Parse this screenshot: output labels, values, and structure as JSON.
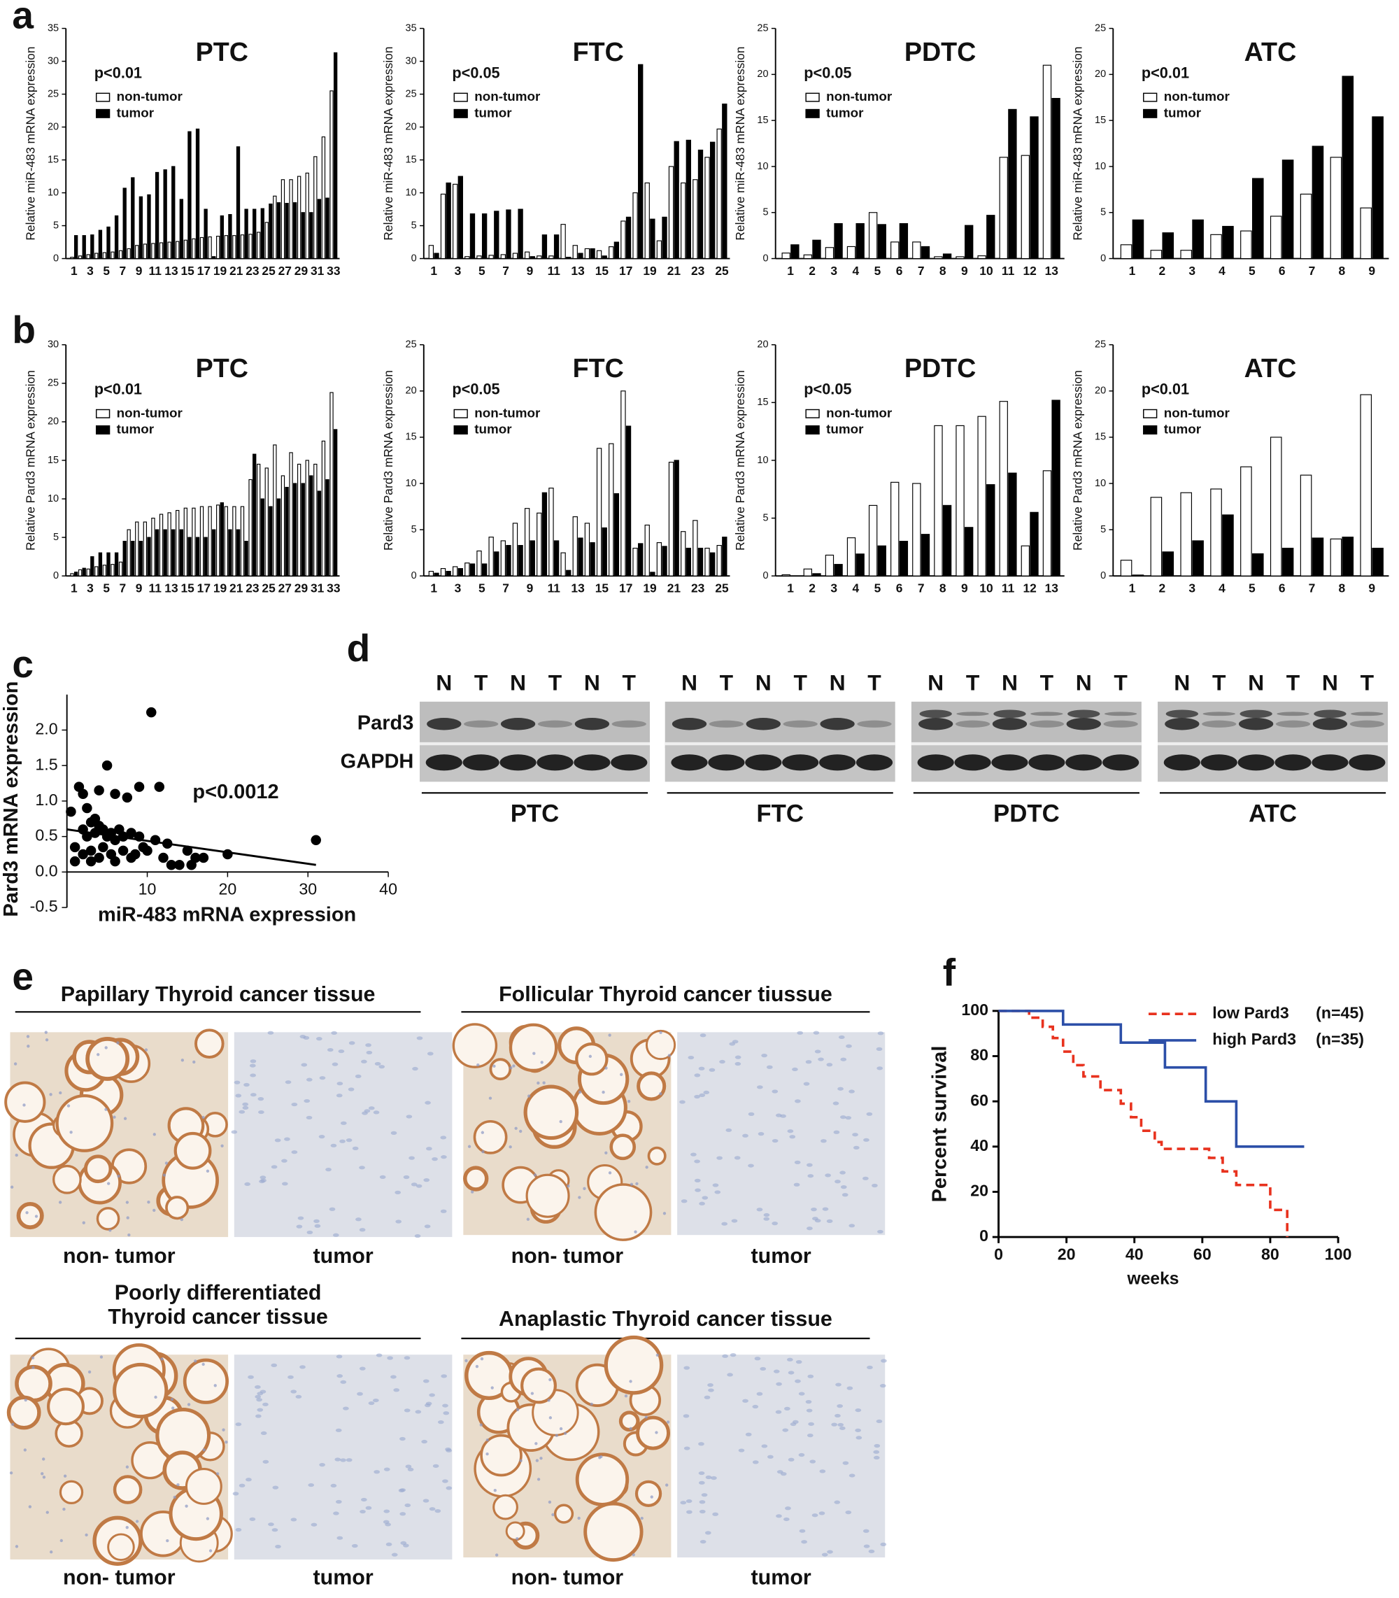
{
  "panel_labels": [
    "a",
    "b",
    "c",
    "d",
    "e",
    "f"
  ],
  "chart_data": [
    {
      "type": "bar",
      "title": "PTC",
      "annotation": "p<0.01",
      "y_label": "Relative miR-483 mRNA expression",
      "categories": [
        "1",
        null,
        "3",
        null,
        "5",
        null,
        "7",
        null,
        "9",
        null,
        "11",
        null,
        "13",
        null,
        "15",
        null,
        "17",
        null,
        "19",
        null,
        "21",
        null,
        "23",
        null,
        "25",
        null,
        "27",
        null,
        "29",
        null,
        "31",
        null,
        "33"
      ],
      "series": [
        {
          "name": "non-tumor",
          "color": "#ffffff",
          "values": [
            0.2,
            0.4,
            0.6,
            0.8,
            0.9,
            1,
            1.2,
            1.5,
            2,
            2.2,
            2.3,
            2.4,
            2.5,
            2.6,
            2.8,
            3,
            3.2,
            3.3,
            3.4,
            3.5,
            3.5,
            3.6,
            3.7,
            4,
            5.5,
            9.5,
            12,
            12,
            12.5,
            13,
            15.5,
            18.5,
            25.5
          ]
        },
        {
          "name": "tumor",
          "color": "#000000",
          "values": [
            3.5,
            3.5,
            3.6,
            4.3,
            4.8,
            6.5,
            10.7,
            12.3,
            9.4,
            9.7,
            13.1,
            13.5,
            14,
            9,
            19.3,
            19.7,
            7.5,
            0.3,
            6.5,
            6.7,
            17,
            7.5,
            7.5,
            7.6,
            8.3,
            8.5,
            8.4,
            8.5,
            7,
            7,
            9,
            9.2,
            31.3
          ]
        }
      ],
      "ylim": [
        0,
        35
      ],
      "yticks": [
        0,
        5,
        10,
        15,
        20,
        25,
        30,
        35
      ]
    },
    {
      "type": "bar",
      "title": "FTC",
      "annotation": "p<0.05",
      "y_label": "Relative miR-483 mRNA expression",
      "categories": [
        "1",
        null,
        "3",
        null,
        "5",
        null,
        "7",
        null,
        "9",
        null,
        "11",
        null,
        "13",
        null,
        "15",
        null,
        "17",
        null,
        "19",
        null,
        "21",
        null,
        "23",
        null,
        "25"
      ],
      "series": [
        {
          "name": "non-tumor",
          "color": "#ffffff",
          "values": [
            2,
            9.8,
            11.3,
            0.3,
            0.4,
            0.5,
            0.6,
            0.8,
            1,
            0.4,
            0.4,
            5.2,
            2,
            1.5,
            1.2,
            1.8,
            5.7,
            10,
            11.5,
            2.7,
            14,
            11.5,
            12,
            15.4,
            19.7
          ]
        },
        {
          "name": "tumor",
          "color": "#000000",
          "values": [
            0.8,
            11.5,
            12.5,
            6.8,
            6.8,
            7.2,
            7.4,
            7.5,
            0.3,
            3.6,
            3.6,
            0.2,
            0.8,
            1.5,
            0.4,
            2.5,
            6.3,
            29.5,
            6,
            6.3,
            17.8,
            18,
            16.5,
            17.7,
            23.5
          ]
        }
      ],
      "ylim": [
        0,
        35
      ],
      "yticks": [
        0,
        5,
        10,
        15,
        20,
        25,
        30,
        35
      ]
    },
    {
      "type": "bar",
      "title": "PDTC",
      "annotation": "p<0.05",
      "y_label": "Relative miR-483 mRNA expression",
      "categories": [
        "1",
        "2",
        "3",
        "4",
        "5",
        "6",
        "7",
        "8",
        "9",
        "10",
        "11",
        "12",
        "13"
      ],
      "series": [
        {
          "name": "non-tumor",
          "color": "#ffffff",
          "values": [
            0.6,
            0.4,
            1.2,
            1.3,
            5,
            1.8,
            1.8,
            0.2,
            0.2,
            0.3,
            11,
            11.2,
            21
          ]
        },
        {
          "name": "tumor",
          "color": "#000000",
          "values": [
            1.5,
            2,
            3.8,
            3.8,
            3.7,
            3.8,
            1.3,
            0.5,
            3.6,
            4.7,
            16.2,
            15.4,
            17.4
          ]
        }
      ],
      "ylim": [
        0,
        25
      ],
      "yticks": [
        0,
        5,
        10,
        15,
        20,
        25
      ]
    },
    {
      "type": "bar",
      "title": "ATC",
      "annotation": "p<0.01",
      "y_label": "Relative miR-483 mRNA expression",
      "categories": [
        "1",
        "2",
        "3",
        "4",
        "5",
        "6",
        "7",
        "8",
        "9"
      ],
      "series": [
        {
          "name": "non-tumor",
          "color": "#ffffff",
          "values": [
            1.5,
            0.9,
            0.9,
            2.6,
            3,
            4.6,
            7,
            11,
            5.5
          ]
        },
        {
          "name": "tumor",
          "color": "#000000",
          "values": [
            4.2,
            2.8,
            4.2,
            3.5,
            8.7,
            10.7,
            12.2,
            19.8,
            15.4
          ]
        }
      ],
      "ylim": [
        0,
        25
      ],
      "yticks": [
        0,
        5,
        10,
        15,
        20,
        25
      ]
    },
    {
      "type": "bar",
      "title": "PTC",
      "annotation": "p<0.01",
      "y_label": "Relative Pard3 mRNA expression",
      "categories": [
        "1",
        null,
        "3",
        null,
        "5",
        null,
        "7",
        null,
        "9",
        null,
        "11",
        null,
        "13",
        null,
        "15",
        null,
        "17",
        null,
        "19",
        null,
        "21",
        null,
        "23",
        null,
        "25",
        null,
        "27",
        null,
        "29",
        null,
        "31",
        null,
        "33"
      ],
      "series": [
        {
          "name": "non-tumor",
          "color": "#ffffff",
          "values": [
            0.3,
            0.8,
            0.9,
            1.2,
            1.4,
            1.5,
            1.8,
            6,
            7,
            7,
            7.5,
            8,
            8.2,
            8.5,
            8.8,
            8.8,
            9,
            9,
            9.2,
            9,
            9,
            9,
            12.5,
            14.5,
            14,
            17,
            13,
            16,
            14.5,
            15,
            14.5,
            17.5,
            23.8
          ]
        },
        {
          "name": "tumor",
          "color": "#000000",
          "values": [
            0.5,
            1,
            2.5,
            3,
            3,
            3,
            4.5,
            4.5,
            4.5,
            5,
            6,
            6,
            6,
            6,
            5,
            5,
            5,
            6,
            9.5,
            6,
            6,
            4.5,
            15.8,
            10,
            9,
            10,
            11.5,
            12,
            12,
            13,
            11,
            12.5,
            19
          ]
        }
      ],
      "ylim": [
        0,
        30
      ],
      "yticks": [
        0,
        5,
        10,
        15,
        20,
        25,
        30
      ]
    },
    {
      "type": "bar",
      "title": "FTC",
      "annotation": "p<0.05",
      "y_label": "Relative Pard3 mRNA expression",
      "categories": [
        "1",
        null,
        "3",
        null,
        "5",
        null,
        "7",
        null,
        "9",
        null,
        "11",
        null,
        "13",
        null,
        "15",
        null,
        "17",
        null,
        "19",
        null,
        "21",
        null,
        "23",
        null,
        "25"
      ],
      "series": [
        {
          "name": "non-tumor",
          "color": "#ffffff",
          "values": [
            0.5,
            0.8,
            1,
            1.4,
            2.7,
            4.2,
            3.8,
            5.7,
            7.3,
            6.8,
            9.5,
            2.5,
            6.4,
            5.7,
            13.8,
            14.3,
            20,
            3,
            5.5,
            3.6,
            12.3,
            4.8,
            6,
            3,
            3.3
          ]
        },
        {
          "name": "tumor",
          "color": "#000000",
          "values": [
            0.3,
            0.5,
            0.8,
            1.3,
            1.3,
            2.6,
            3.3,
            3.3,
            3.8,
            9,
            3.8,
            0.6,
            4.1,
            3.6,
            5.2,
            8.9,
            16.2,
            3.5,
            0.4,
            3.2,
            12.5,
            3,
            3,
            2.5,
            4.2
          ]
        }
      ],
      "ylim": [
        0,
        25
      ],
      "yticks": [
        0,
        5,
        10,
        15,
        20,
        25
      ]
    },
    {
      "type": "bar",
      "title": "PDTC",
      "annotation": "p<0.05",
      "y_label": "Relative Pard3 mRNA expression",
      "categories": [
        "1",
        "2",
        "3",
        "4",
        "5",
        "6",
        "7",
        "8",
        "9",
        "10",
        "11",
        "12",
        "13"
      ],
      "series": [
        {
          "name": "non-tumor",
          "color": "#ffffff",
          "values": [
            0.1,
            0.6,
            1.8,
            3.3,
            6.1,
            8.1,
            8,
            13,
            13,
            13.8,
            15.1,
            2.6,
            9.1
          ]
        },
        {
          "name": "tumor",
          "color": "#000000",
          "values": [
            0,
            0.2,
            1,
            1.9,
            2.6,
            3,
            3.6,
            6.1,
            4.2,
            7.9,
            8.9,
            5.5,
            15.2
          ]
        }
      ],
      "ylim": [
        0,
        20
      ],
      "yticks": [
        0,
        5,
        10,
        15,
        20
      ]
    },
    {
      "type": "bar",
      "title": "ATC",
      "annotation": "p<0.01",
      "y_label": "Relative Pard3 mRNA expression",
      "categories": [
        "1",
        "2",
        "3",
        "4",
        "5",
        "6",
        "7",
        "8",
        "9"
      ],
      "series": [
        {
          "name": "non-tumor",
          "color": "#ffffff",
          "values": [
            1.7,
            8.5,
            9,
            9.4,
            11.8,
            15,
            10.9,
            4,
            19.6
          ]
        },
        {
          "name": "tumor",
          "color": "#000000",
          "values": [
            0.1,
            2.6,
            3.8,
            6.6,
            2.4,
            3,
            4.1,
            4.2,
            3
          ]
        }
      ],
      "ylim": [
        0,
        25
      ],
      "yticks": [
        0,
        5,
        10,
        15,
        20,
        25
      ]
    },
    {
      "type": "scatter",
      "annotation": "p<0.0012",
      "x_label": "miR-483 mRNA expression",
      "y_label": "Pard3 mRNA expression",
      "color": "#000000",
      "x": [
        0.5,
        1,
        1.5,
        2,
        2,
        2.5,
        2.5,
        3,
        3,
        3,
        3.5,
        3.5,
        4,
        4,
        4.5,
        4.5,
        5,
        5,
        5.5,
        5.5,
        6,
        6,
        6.5,
        7,
        7,
        7.5,
        8,
        8,
        8.5,
        9,
        9,
        9.5,
        10,
        10.5,
        11,
        11.5,
        12,
        12.5,
        13,
        14,
        15,
        15.5,
        16,
        17,
        20,
        31,
        1,
        2,
        6,
        4
      ],
      "y": [
        0.85,
        0.15,
        1.2,
        1.1,
        0.6,
        0.9,
        0.5,
        0.7,
        0.15,
        0.3,
        0.75,
        0.55,
        0.65,
        0.2,
        0.6,
        0.35,
        1.5,
        0.5,
        0.55,
        0.25,
        0.45,
        0.15,
        0.6,
        0.5,
        0.3,
        1.05,
        0.2,
        0.55,
        0.25,
        1.2,
        0.5,
        0.35,
        0.3,
        2.25,
        0.45,
        1.2,
        0.2,
        0.4,
        0.1,
        0.1,
        0.3,
        0.1,
        0.2,
        0.2,
        0.25,
        0.45,
        0.35,
        0.25,
        1.1,
        1.15
      ],
      "fit": {
        "x": [
          0,
          31
        ],
        "y": [
          0.6,
          0.1
        ]
      },
      "xlim": [
        0,
        40
      ],
      "xticks": [
        10,
        20,
        30,
        40
      ],
      "ylim": [
        -0.5,
        2.5
      ],
      "yticks": [
        -0.5,
        {
          "value": 0,
          "label": "0.0"
        },
        0.5,
        {
          "value": 1,
          "label": "1.0"
        },
        1.5,
        {
          "value": 2,
          "label": "2.0"
        }
      ]
    },
    {
      "type": "line",
      "x_label": "weeks",
      "y_label": "Percent survival",
      "series": [
        {
          "name": "low Pard3",
          "n_label": "(n=45)",
          "color": "#e8321e",
          "dashed": true,
          "x": [
            0,
            9,
            9,
            13,
            13,
            16,
            16,
            19,
            19,
            22,
            22,
            25,
            25,
            30,
            30,
            36,
            36,
            39,
            39,
            42,
            42,
            46,
            46,
            48,
            48,
            62,
            62,
            66,
            66,
            70,
            70,
            80,
            80,
            85,
            85
          ],
          "values": [
            100,
            100,
            97,
            97,
            93,
            93,
            88,
            88,
            82,
            82,
            76,
            76,
            71,
            71,
            65,
            65,
            59,
            59,
            53,
            53,
            47,
            47,
            42,
            42,
            39,
            39,
            35,
            35,
            29,
            29,
            23,
            23,
            12,
            12,
            0
          ]
        },
        {
          "name": "high Pard3",
          "n_label": "(n=35)",
          "color": "#2c4fa8",
          "dashed": false,
          "x": [
            0,
            19,
            19,
            36,
            36,
            49,
            49,
            61,
            61,
            70,
            70,
            90
          ],
          "values": [
            100,
            100,
            94,
            94,
            86,
            86,
            75,
            75,
            60,
            60,
            40,
            40
          ]
        }
      ],
      "xlim": [
        0,
        100
      ],
      "xticks": [
        0,
        20,
        40,
        60,
        80,
        100
      ],
      "ylim": [
        0,
        100
      ],
      "yticks": [
        0,
        20,
        40,
        60,
        80,
        100
      ]
    }
  ],
  "western_blot": {
    "rows": [
      "Pard3",
      "GAPDH"
    ],
    "groups": [
      {
        "name": "PTC",
        "lanes": [
          "N",
          "T",
          "N",
          "T",
          "N",
          "T"
        ]
      },
      {
        "name": "FTC",
        "lanes": [
          "N",
          "T",
          "N",
          "T",
          "N",
          "T"
        ]
      },
      {
        "name": "PDTC",
        "lanes": [
          "N",
          "T",
          "N",
          "T",
          "N",
          "T"
        ]
      },
      {
        "name": "ATC",
        "lanes": [
          "N",
          "T",
          "N",
          "T",
          "N",
          "T"
        ]
      }
    ]
  },
  "ihc": {
    "panels": [
      {
        "title_lines": [
          "Papillary Thyroid cancer tissue"
        ],
        "labels": [
          "non- tumor",
          "tumor"
        ]
      },
      {
        "title_lines": [
          "Follicular Thyroid cancer tiussue"
        ],
        "labels": [
          "non- tumor",
          "tumor"
        ]
      },
      {
        "title_lines": [
          "Poorly differentiated",
          "Thyroid cancer tissue"
        ],
        "labels": [
          "non- tumor",
          "tumor"
        ]
      },
      {
        "title_lines": [
          "Anaplastic Thyroid cancer tissue"
        ],
        "labels": [
          "non- tumor",
          "tumor"
        ]
      }
    ]
  }
}
